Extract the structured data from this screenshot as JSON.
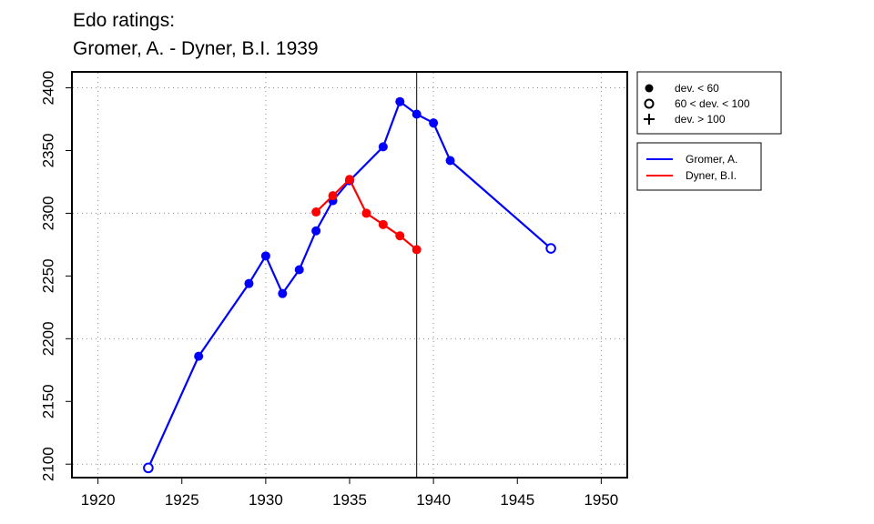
{
  "chart_data": {
    "type": "line",
    "title_line1": "Edo ratings:",
    "title_line2": "Gromer, A. - Dyner, B.I. 1939",
    "xlabel": "",
    "ylabel": "",
    "xlim": [
      1918.5,
      1951.5
    ],
    "ylim": [
      2090,
      2412
    ],
    "x_ticks": [
      1920,
      1925,
      1930,
      1935,
      1940,
      1945,
      1950
    ],
    "y_ticks": [
      2100,
      2150,
      2200,
      2250,
      2300,
      2350,
      2400
    ],
    "x_ticks_text": [
      "1920",
      "1925",
      "1930",
      "1935",
      "1940",
      "1945",
      "1950"
    ],
    "y_ticks_text": [
      "2100",
      "2150",
      "2200",
      "2250",
      "2300",
      "2350",
      "2400"
    ],
    "grid_x": [
      1920,
      1930,
      1940,
      1950
    ],
    "grid_y": [
      2100,
      2200,
      2300,
      2400
    ],
    "grid": true,
    "vertical_line_x": 1939,
    "series": [
      {
        "name": "Gromer, A.",
        "color": "#0000ff",
        "points": [
          {
            "x": 1923,
            "y": 2097,
            "marker": "open"
          },
          {
            "x": 1926,
            "y": 2186,
            "marker": "filled"
          },
          {
            "x": 1929,
            "y": 2244,
            "marker": "filled"
          },
          {
            "x": 1930,
            "y": 2266,
            "marker": "filled"
          },
          {
            "x": 1931,
            "y": 2236,
            "marker": "filled"
          },
          {
            "x": 1932,
            "y": 2255,
            "marker": "filled"
          },
          {
            "x": 1933,
            "y": 2286,
            "marker": "filled"
          },
          {
            "x": 1934,
            "y": 2310,
            "marker": "filled"
          },
          {
            "x": 1935,
            "y": 2326,
            "marker": "filled"
          },
          {
            "x": 1937,
            "y": 2353,
            "marker": "filled"
          },
          {
            "x": 1938,
            "y": 2389,
            "marker": "filled"
          },
          {
            "x": 1939,
            "y": 2379,
            "marker": "filled"
          },
          {
            "x": 1940,
            "y": 2372,
            "marker": "filled"
          },
          {
            "x": 1941,
            "y": 2342,
            "marker": "filled"
          },
          {
            "x": 1947,
            "y": 2272,
            "marker": "open"
          }
        ]
      },
      {
        "name": "Dyner, B.I.",
        "color": "#ff0000",
        "points": [
          {
            "x": 1933,
            "y": 2301,
            "marker": "filled"
          },
          {
            "x": 1934,
            "y": 2314,
            "marker": "filled"
          },
          {
            "x": 1935,
            "y": 2327,
            "marker": "filled"
          },
          {
            "x": 1936,
            "y": 2300,
            "marker": "filled"
          },
          {
            "x": 1937,
            "y": 2291,
            "marker": "filled"
          },
          {
            "x": 1938,
            "y": 2282,
            "marker": "filled"
          },
          {
            "x": 1939,
            "y": 2271,
            "marker": "filled"
          }
        ]
      }
    ],
    "legend_markers": [
      {
        "symbol": "filled",
        "label": "dev. < 60"
      },
      {
        "symbol": "open",
        "label": "60 < dev. < 100"
      },
      {
        "symbol": "plus",
        "label": "dev. > 100"
      }
    ],
    "legend_placement": "top-right, outside plot"
  }
}
